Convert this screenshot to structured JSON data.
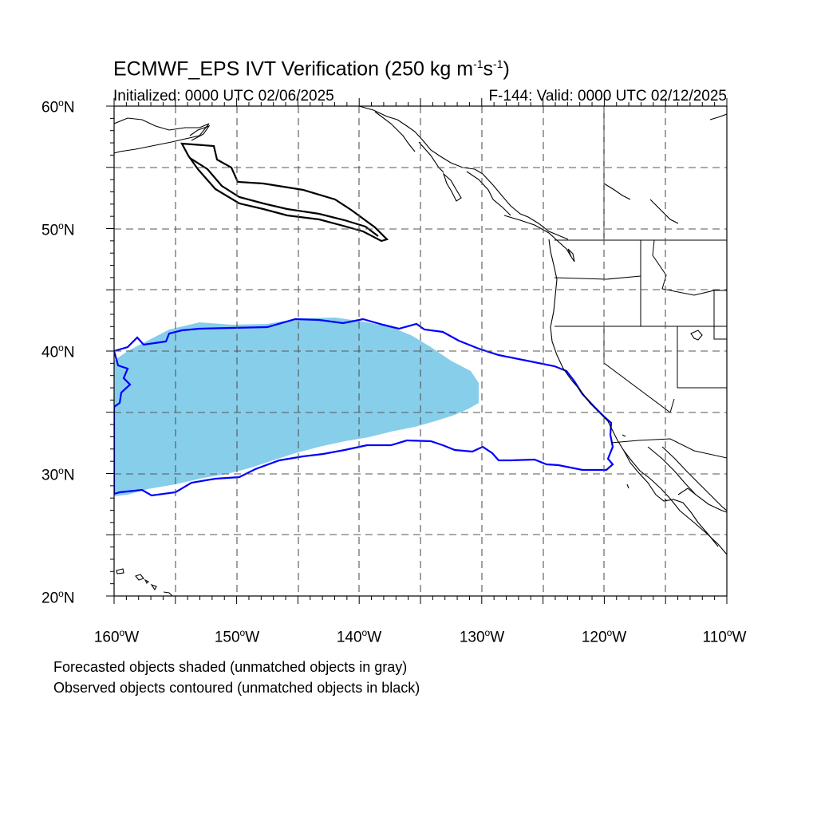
{
  "title": {
    "text": "ECMWF_EPS IVT Verification (250 kg m",
    "exp1": "-1",
    "mid": "s",
    "exp2": "-1",
    "end": ")"
  },
  "subtitle_left": "Initialized: 0000 UTC 02/06/2025",
  "subtitle_right": "F-144: Valid: 0000 UTC 02/12/2025",
  "lat_labels": [
    {
      "num": "60",
      "hemi": "N"
    },
    {
      "num": "50",
      "hemi": "N"
    },
    {
      "num": "40",
      "hemi": "N"
    },
    {
      "num": "30",
      "hemi": "N"
    },
    {
      "num": "20",
      "hemi": "N"
    }
  ],
  "lon_labels": [
    {
      "num": "160",
      "hemi": "W"
    },
    {
      "num": "150",
      "hemi": "W"
    },
    {
      "num": "140",
      "hemi": "W"
    },
    {
      "num": "130",
      "hemi": "W"
    },
    {
      "num": "120",
      "hemi": "W"
    },
    {
      "num": "110",
      "hemi": "W"
    }
  ],
  "degree_symbol": "o",
  "footnotes": [
    "Forecasted objects shaded (unmatched objects in gray)",
    "Observed objects contoured (unmatched objects in black)"
  ],
  "colors": {
    "forecast_fill": "#87ceeb",
    "observed_matched": "#0000ff",
    "observed_unmatched": "#000000",
    "grid": "#555555"
  },
  "map_extent": {
    "lon_min": -160,
    "lon_max": -110,
    "lat_min": 20,
    "lat_max": 60
  },
  "objects": [
    {
      "kind": "forecast",
      "matched": true
    },
    {
      "kind": "observed",
      "matched": true
    },
    {
      "kind": "observed",
      "matched": false
    }
  ]
}
